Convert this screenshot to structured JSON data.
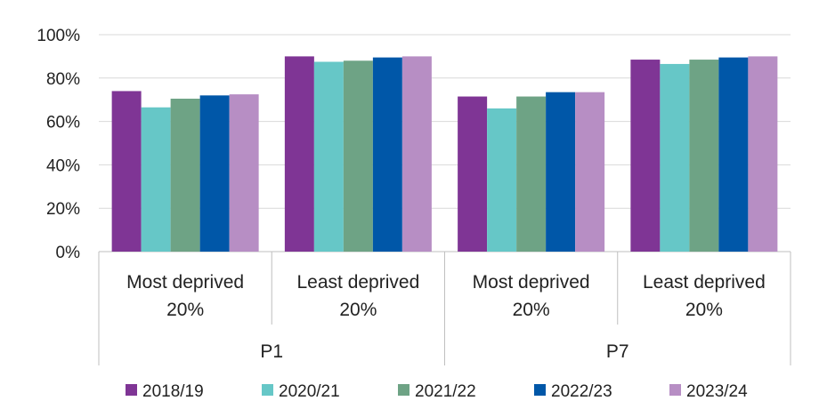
{
  "chart_data": {
    "type": "bar",
    "ylim": [
      0,
      100
    ],
    "yticks": [
      "0%",
      "20%",
      "40%",
      "60%",
      "80%",
      "100%"
    ],
    "groups": [
      {
        "label": "P1",
        "categories": [
          "Most deprived 20%",
          "Least deprived 20%"
        ]
      },
      {
        "label": "P7",
        "categories": [
          "Most deprived 20%",
          "Least deprived 20%"
        ]
      }
    ],
    "category_lines": [
      [
        "Most deprived",
        "20%"
      ],
      [
        "Least deprived",
        "20%"
      ],
      [
        "Most deprived",
        "20%"
      ],
      [
        "Least deprived",
        "20%"
      ]
    ],
    "series": [
      {
        "name": "2018/19",
        "color": "#7f3595",
        "values": [
          74,
          90,
          71.5,
          88.5
        ]
      },
      {
        "name": "2020/21",
        "color": "#66c7c7",
        "values": [
          66.5,
          87.5,
          66,
          86.5
        ]
      },
      {
        "name": "2021/22",
        "color": "#6ea385",
        "values": [
          70.5,
          88,
          71.5,
          88.5
        ]
      },
      {
        "name": "2022/23",
        "color": "#0057a8",
        "values": [
          72,
          89.5,
          73.5,
          89.5
        ]
      },
      {
        "name": "2023/24",
        "color": "#b78ec4",
        "values": [
          72.5,
          90,
          73.5,
          90
        ]
      }
    ],
    "grid": true,
    "legend": "bottom"
  }
}
